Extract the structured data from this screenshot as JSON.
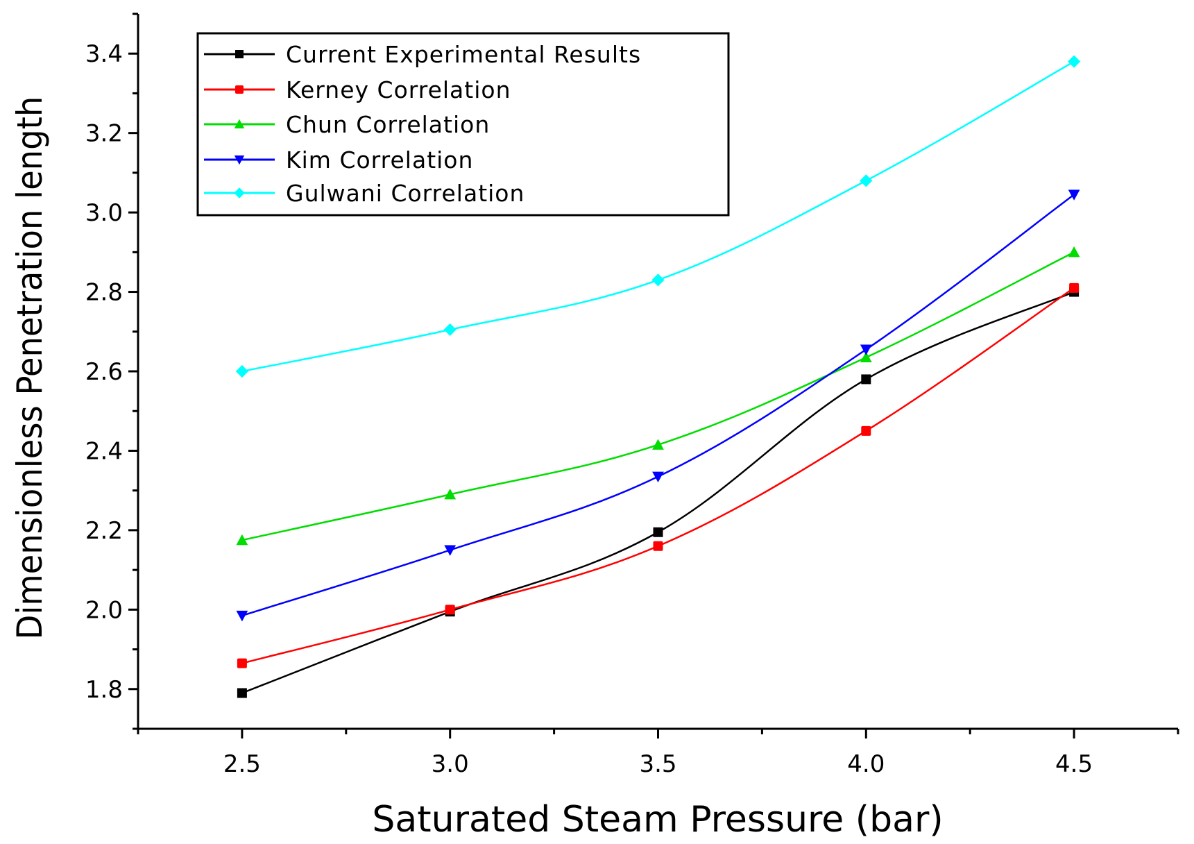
{
  "chart_data": {
    "type": "line",
    "xlabel": "Saturated Steam Pressure (bar)",
    "ylabel": "Dimensionless Penetration length",
    "xlim": [
      2.25,
      4.75
    ],
    "ylim": [
      1.7,
      3.5
    ],
    "x": [
      2.5,
      3.0,
      3.5,
      4.0,
      4.5
    ],
    "xticks": [
      2.5,
      3.0,
      3.5,
      4.0,
      4.5
    ],
    "xtick_labels": [
      "2.5",
      "3.0",
      "3.5",
      "4.0",
      "4.5"
    ],
    "yticks": [
      1.8,
      2.0,
      2.2,
      2.4,
      2.6,
      2.8,
      3.0,
      3.2,
      3.4
    ],
    "ytick_labels": [
      "1.8",
      "2.0",
      "2.2",
      "2.4",
      "2.6",
      "2.8",
      "3.0",
      "3.2",
      "3.4"
    ],
    "grid": false,
    "legend_position": "top-left",
    "series": [
      {
        "name": "Current Experimental Results",
        "color": "#000000",
        "marker": "square",
        "values": [
          1.79,
          1.995,
          2.195,
          2.58,
          2.8
        ]
      },
      {
        "name": "Kerney Correlation",
        "color": "#ff0000",
        "marker": "circle",
        "values": [
          1.865,
          2.0,
          2.16,
          2.45,
          2.81
        ]
      },
      {
        "name": "Chun Correlation",
        "color": "#00dd00",
        "marker": "triangle-up",
        "values": [
          2.175,
          2.29,
          2.415,
          2.635,
          2.9
        ]
      },
      {
        "name": "Kim Correlation",
        "color": "#0000ff",
        "marker": "triangle-down",
        "values": [
          1.985,
          2.15,
          2.335,
          2.655,
          3.045
        ]
      },
      {
        "name": "Gulwani Correlation",
        "color": "#00ffff",
        "marker": "diamond",
        "values": [
          2.6,
          2.705,
          2.83,
          3.08,
          3.38
        ]
      }
    ]
  }
}
